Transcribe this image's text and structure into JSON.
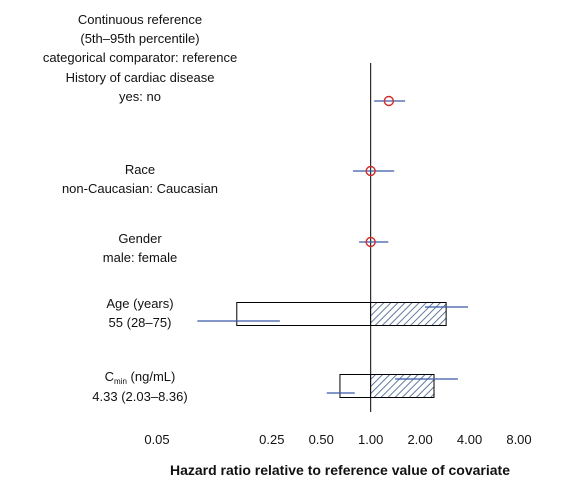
{
  "chart_data": {
    "type": "forest",
    "header": [
      "Continuous reference",
      "(5th–95th percentile)",
      "categorical comparator: reference"
    ],
    "xlabel": "Hazard ratio relative to reference value of covariate",
    "log_x": true,
    "xlim": [
      0.05,
      8
    ],
    "xticks": [
      0.05,
      0.25,
      {
        "value": 0.5,
        "label": "0.50"
      },
      {
        "value": 1,
        "label": "1.00"
      },
      {
        "value": 2,
        "label": "2.00"
      },
      {
        "value": 4,
        "label": "4.00"
      },
      {
        "value": 8,
        "label": "8.00"
      }
    ],
    "reference_line": 1,
    "point_color": "#d42a2a",
    "ci_color": "#3a5aa8",
    "rows": [
      {
        "kind": "categorical",
        "label": "History of cardiac disease",
        "sublabel": "yes: no",
        "point": 1.29,
        "ci": [
          1.05,
          1.62
        ]
      },
      {
        "kind": "categorical",
        "label": "Race",
        "sublabel": "non-Caucasian: Caucasian",
        "point": 1.0,
        "ci": [
          0.78,
          1.39
        ]
      },
      {
        "kind": "categorical",
        "label": "Gender",
        "sublabel": "male: female",
        "point": 1.0,
        "ci": [
          0.85,
          1.28
        ]
      },
      {
        "kind": "continuous",
        "label": "Age (years)",
        "sublabel": "55 (28–75)",
        "low": 0.153,
        "high": 2.88,
        "low_ci": [
          0.088,
          0.28
        ],
        "high_ci": [
          2.14,
          3.92
        ]
      },
      {
        "kind": "continuous",
        "label": "C",
        "label_subscript": "min",
        "label_unit": " (ng/mL)",
        "sublabel": "4.33 (2.03–8.36)",
        "low": 0.65,
        "high": 2.43,
        "low_ci": [
          0.54,
          0.8
        ],
        "high_ci": [
          1.41,
          3.4
        ]
      }
    ]
  }
}
